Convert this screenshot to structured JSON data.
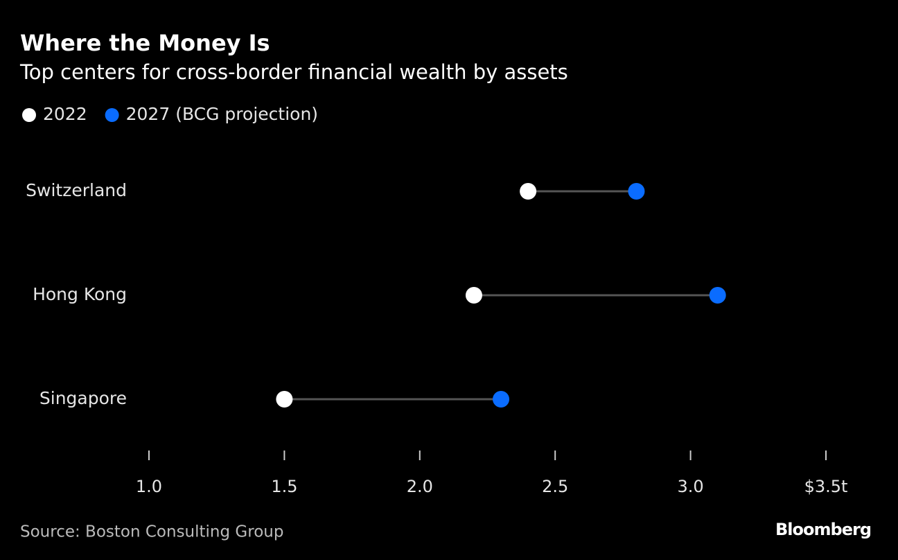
{
  "chart_data": {
    "type": "dumbbell",
    "title": "Where the Money Is",
    "subtitle": "Top centers for cross-border financial wealth by assets",
    "categories": [
      "Switzerland",
      "Hong Kong",
      "Singapore"
    ],
    "series": [
      {
        "name": "2022",
        "color": "#ffffff",
        "values": [
          2.4,
          2.2,
          1.5
        ]
      },
      {
        "name": "2027 (BCG projection)",
        "color": "#0a6cff",
        "values": [
          2.8,
          3.1,
          2.3
        ]
      }
    ],
    "xlim": [
      1.0,
      3.5
    ],
    "xticks": [
      {
        "value": 1,
        "label": "1.0"
      },
      1.5,
      {
        "value": 2,
        "label": "2.0"
      },
      2.5,
      {
        "value": 3,
        "label": "3.0"
      },
      {
        "value": 3.5,
        "label": "$3.5t"
      }
    ],
    "connector_color": "#555555",
    "legend": "top-left",
    "source": "Source: Boston Consulting Group",
    "logo": "Bloomberg"
  }
}
